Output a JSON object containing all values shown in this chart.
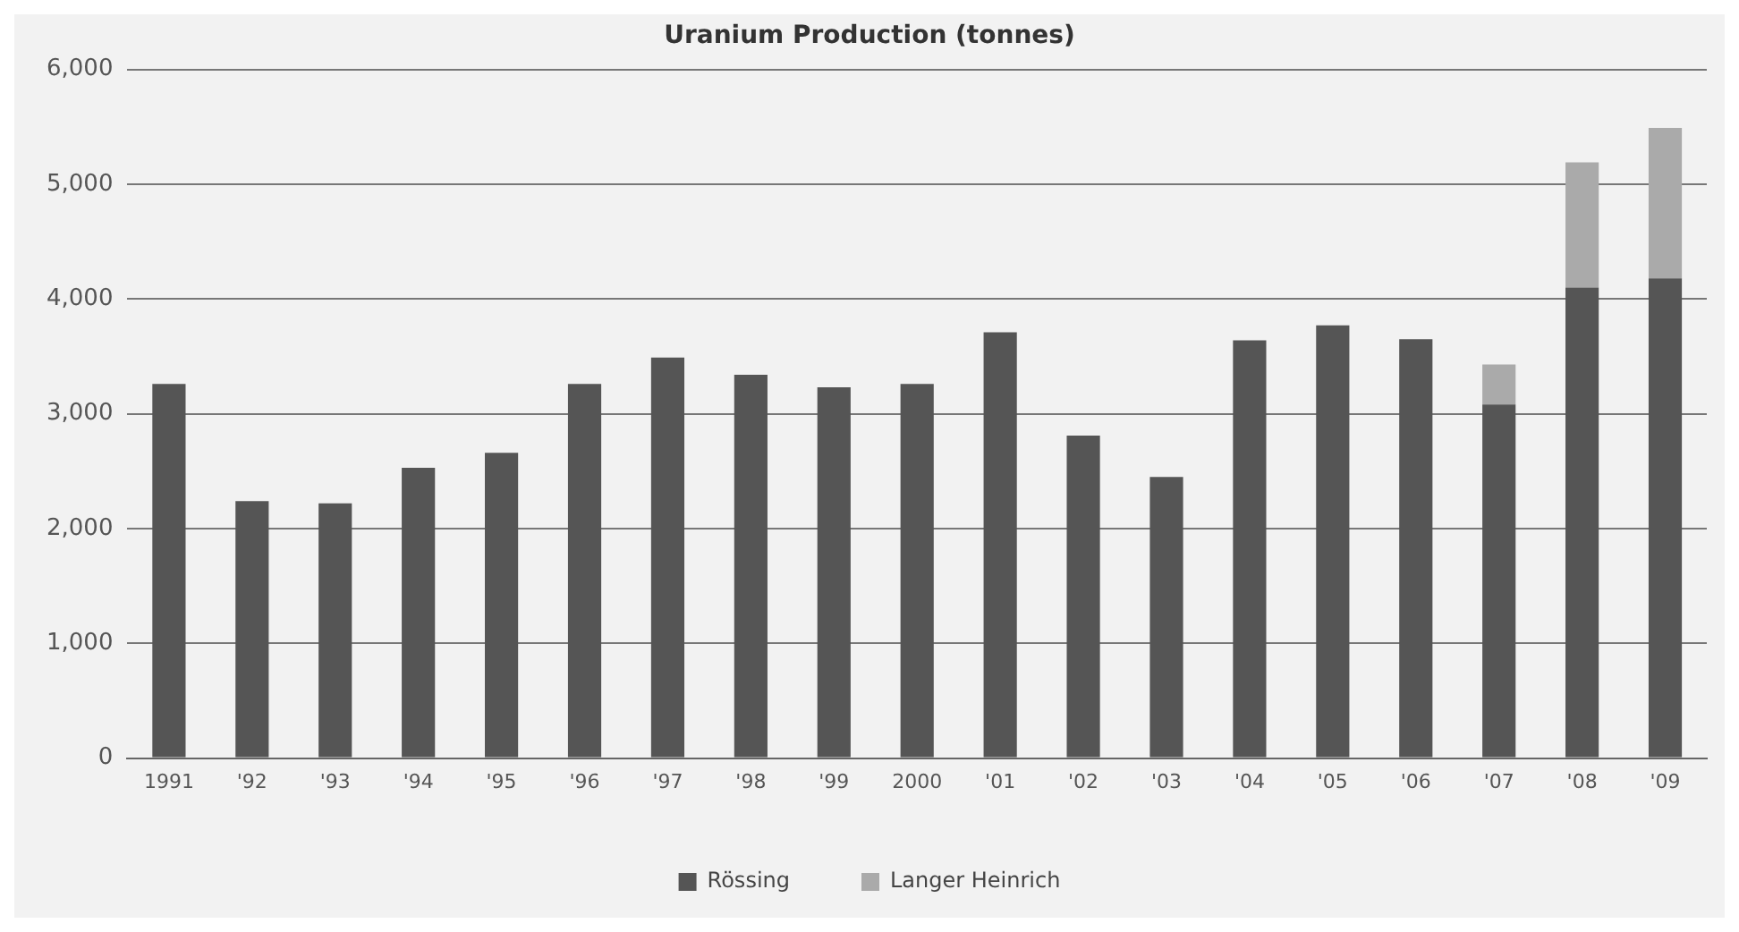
{
  "chart_data": {
    "type": "bar",
    "title": "Uranium Production (tonnes)",
    "categories": [
      "1991",
      "'92",
      "'93",
      "'94",
      "'95",
      "'96",
      "'97",
      "'98",
      "'99",
      "2000",
      "'01",
      "'02",
      "'03",
      "'04",
      "'05",
      "'06",
      "'07",
      "'08",
      "'09"
    ],
    "series": [
      {
        "name": "Rössing",
        "color": "#555555",
        "values": [
          3260,
          2240,
          2220,
          2530,
          2660,
          3260,
          3490,
          3340,
          3230,
          3260,
          3710,
          2810,
          2450,
          3640,
          3770,
          3650,
          3080,
          4100,
          4180
        ]
      },
      {
        "name": "Langer Heinrich",
        "color": "#aaaaaa",
        "values": [
          null,
          null,
          null,
          null,
          null,
          null,
          null,
          null,
          null,
          null,
          null,
          null,
          null,
          null,
          null,
          null,
          350,
          1090,
          1310
        ]
      }
    ],
    "stacked": true,
    "ylim": [
      0,
      6000
    ],
    "yticks": [
      0,
      {
        "value": 1000,
        "label": "1,000"
      },
      {
        "value": 2000,
        "label": "2,000"
      },
      {
        "value": 3000,
        "label": "3,000"
      },
      {
        "value": 4000,
        "label": "4,000"
      },
      {
        "value": 5000,
        "label": "5,000"
      },
      {
        "value": 6000,
        "label": "6,000"
      }
    ],
    "grid": "y",
    "legend": "bottom"
  }
}
